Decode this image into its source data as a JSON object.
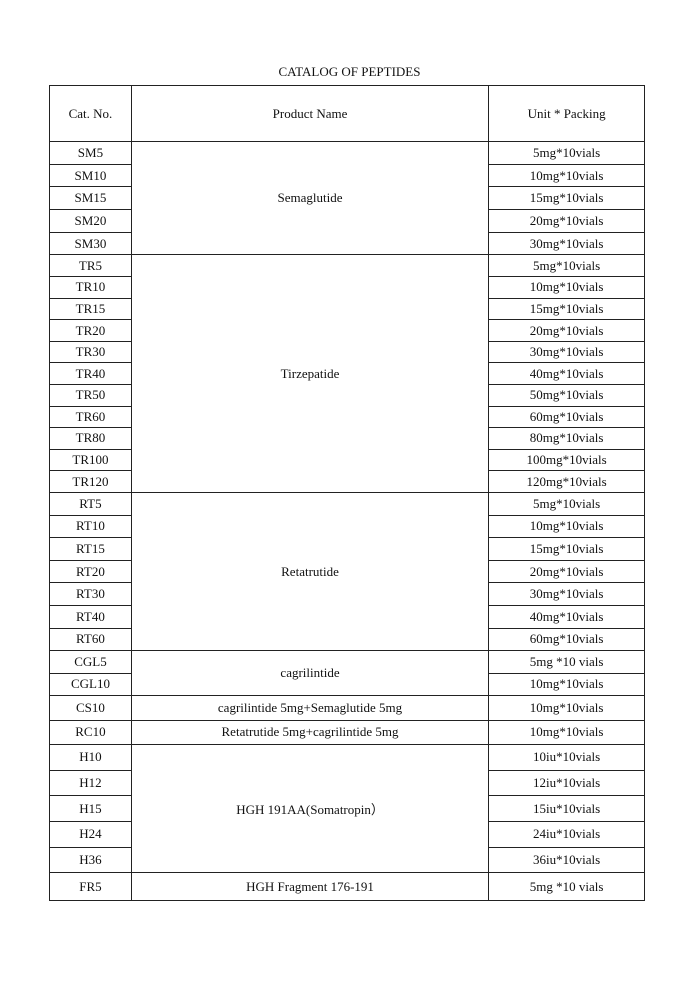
{
  "title": "CATALOG OF PEPTIDES",
  "headers": [
    "Cat. No.",
    "Product Name",
    "Unit * Packing"
  ],
  "groups": [
    {
      "product": "Semaglutide",
      "rows": [
        {
          "cat": "SM5",
          "unit": "5mg*10vials"
        },
        {
          "cat": "SM10",
          "unit": "10mg*10vials"
        },
        {
          "cat": "SM15",
          "unit": "15mg*10vials"
        },
        {
          "cat": "SM20",
          "unit": "20mg*10vials"
        },
        {
          "cat": "SM30",
          "unit": "30mg*10vials"
        }
      ]
    },
    {
      "product": "Tirzepatide",
      "rows": [
        {
          "cat": "TR5",
          "unit": "5mg*10vials"
        },
        {
          "cat": "TR10",
          "unit": "10mg*10vials"
        },
        {
          "cat": "TR15",
          "unit": "15mg*10vials"
        },
        {
          "cat": "TR20",
          "unit": "20mg*10vials"
        },
        {
          "cat": "TR30",
          "unit": "30mg*10vials"
        },
        {
          "cat": "TR40",
          "unit": "40mg*10vials"
        },
        {
          "cat": "TR50",
          "unit": "50mg*10vials"
        },
        {
          "cat": "TR60",
          "unit": "60mg*10vials"
        },
        {
          "cat": "TR80",
          "unit": "80mg*10vials"
        },
        {
          "cat": "TR100",
          "unit": "100mg*10vials"
        },
        {
          "cat": "TR120",
          "unit": "120mg*10vials"
        }
      ]
    },
    {
      "product": "Retatrutide",
      "rows": [
        {
          "cat": "RT5",
          "unit": "5mg*10vials"
        },
        {
          "cat": "RT10",
          "unit": "10mg*10vials"
        },
        {
          "cat": "RT15",
          "unit": "15mg*10vials"
        },
        {
          "cat": "RT20",
          "unit": "20mg*10vials"
        },
        {
          "cat": "RT30",
          "unit": "30mg*10vials"
        },
        {
          "cat": "RT40",
          "unit": "40mg*10vials"
        },
        {
          "cat": "RT60",
          "unit": "60mg*10vials"
        }
      ]
    },
    {
      "product": "cagrilintide",
      "rows": [
        {
          "cat": "CGL5",
          "unit": "5mg *10 vials"
        },
        {
          "cat": "CGL10",
          "unit": "10mg*10vials"
        }
      ]
    },
    {
      "product": "cagrilintide 5mg+Semaglutide 5mg",
      "rows": [
        {
          "cat": "CS10",
          "unit": "10mg*10vials"
        }
      ]
    },
    {
      "product": "Retatrutide 5mg+cagrilintide 5mg",
      "rows": [
        {
          "cat": "RC10",
          "unit": "10mg*10vials"
        }
      ]
    },
    {
      "product": "HGH 191AA(Somatropin）",
      "rows": [
        {
          "cat": "H10",
          "unit": "10iu*10vials"
        },
        {
          "cat": "H12",
          "unit": "12iu*10vials"
        },
        {
          "cat": "H15",
          "unit": "15iu*10vials"
        },
        {
          "cat": "H24",
          "unit": "24iu*10vials"
        },
        {
          "cat": "H36",
          "unit": "36iu*10vials"
        }
      ]
    },
    {
      "product": "HGH Fragment 176-191",
      "rows": [
        {
          "cat": "FR5",
          "unit": "5mg *10 vials"
        }
      ]
    }
  ]
}
